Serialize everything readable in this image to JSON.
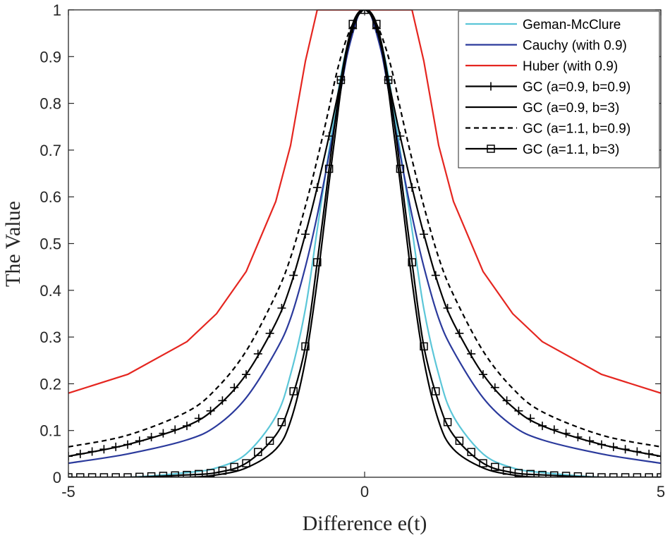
{
  "chart_data": {
    "type": "line",
    "title": "",
    "xlabel": "Difference e(t)",
    "ylabel": "The Value",
    "xlim": [
      -5,
      5
    ],
    "ylim": [
      0,
      1
    ],
    "xticks": [
      -5,
      0,
      5
    ],
    "yticks": [
      0,
      0.1,
      0.2,
      0.3,
      0.4,
      0.5,
      0.6,
      0.7,
      0.8,
      0.9,
      1
    ],
    "ytick_labels": [
      "0",
      "0.1",
      "0.2",
      "0.3",
      "0.4",
      "0.5",
      "0.6",
      "0.7",
      "0.8",
      "0.9",
      "1"
    ],
    "xtick_labels": [
      "-5",
      "0",
      "5"
    ],
    "legend_position": "top-right",
    "x": [
      -5,
      -4,
      -3,
      -2.5,
      -2,
      -1.5,
      -1.25,
      -1,
      -0.8,
      -0.6,
      -0.5,
      -0.4,
      -0.3,
      -0.2,
      -0.1,
      0,
      0.1,
      0.2,
      0.3,
      0.4,
      0.5,
      0.6,
      0.8,
      1,
      1.25,
      1.5,
      2,
      2.5,
      3,
      4,
      5
    ],
    "series": [
      {
        "name": "Geman-McClure",
        "color": "#5bc6d8",
        "style": "solid",
        "marker": "none",
        "values": [
          0.0,
          0.0,
          0.01,
          0.02,
          0.05,
          0.13,
          0.22,
          0.36,
          0.53,
          0.7,
          0.78,
          0.86,
          0.92,
          0.96,
          0.99,
          1.0,
          0.99,
          0.96,
          0.92,
          0.86,
          0.78,
          0.7,
          0.53,
          0.36,
          0.22,
          0.13,
          0.05,
          0.02,
          0.01,
          0.0,
          0.0
        ]
      },
      {
        "name": "Cauchy (with 0.9)",
        "color": "#2b3a9c",
        "style": "solid",
        "marker": "none",
        "values": [
          0.03,
          0.05,
          0.08,
          0.11,
          0.17,
          0.27,
          0.34,
          0.45,
          0.56,
          0.69,
          0.76,
          0.83,
          0.9,
          0.95,
          0.99,
          1.0,
          0.99,
          0.95,
          0.9,
          0.83,
          0.76,
          0.69,
          0.56,
          0.45,
          0.34,
          0.27,
          0.17,
          0.11,
          0.08,
          0.05,
          0.03
        ]
      },
      {
        "name": "Huber (with 0.9)",
        "color": "#e52620",
        "style": "solid",
        "marker": "none",
        "values": [
          0.18,
          0.22,
          0.29,
          0.35,
          0.44,
          0.59,
          0.71,
          0.89,
          1.0,
          1.0,
          1.0,
          1.0,
          1.0,
          1.0,
          1.0,
          1.0,
          1.0,
          1.0,
          1.0,
          1.0,
          1.0,
          1.0,
          1.0,
          0.89,
          0.71,
          0.59,
          0.44,
          0.35,
          0.29,
          0.22,
          0.18
        ]
      },
      {
        "name": "GC (a=0.9, b=0.9)",
        "color": "#000000",
        "style": "solid",
        "marker": "plus",
        "values": [
          0.045,
          0.07,
          0.11,
          0.15,
          0.22,
          0.33,
          0.41,
          0.52,
          0.62,
          0.73,
          0.79,
          0.85,
          0.91,
          0.96,
          0.99,
          1.0,
          0.99,
          0.96,
          0.91,
          0.85,
          0.79,
          0.73,
          0.62,
          0.52,
          0.41,
          0.33,
          0.22,
          0.15,
          0.11,
          0.07,
          0.045
        ]
      },
      {
        "name": "GC (a=0.9, b=3)",
        "color": "#000000",
        "style": "solid",
        "marker": "none",
        "values": [
          0.0,
          0.0,
          0.0,
          0.005,
          0.02,
          0.06,
          0.12,
          0.25,
          0.42,
          0.63,
          0.73,
          0.83,
          0.91,
          0.97,
          0.995,
          1.0,
          0.995,
          0.97,
          0.91,
          0.83,
          0.73,
          0.63,
          0.42,
          0.25,
          0.12,
          0.06,
          0.02,
          0.005,
          0.0,
          0.0,
          0.0
        ]
      },
      {
        "name": "GC (a=1.1, b=0.9)",
        "color": "#000000",
        "style": "dashed",
        "marker": "none",
        "values": [
          0.065,
          0.09,
          0.14,
          0.19,
          0.27,
          0.39,
          0.47,
          0.58,
          0.68,
          0.79,
          0.85,
          0.9,
          0.94,
          0.97,
          0.99,
          1.0,
          0.99,
          0.97,
          0.94,
          0.9,
          0.85,
          0.79,
          0.68,
          0.58,
          0.47,
          0.39,
          0.27,
          0.19,
          0.14,
          0.09,
          0.065
        ]
      },
      {
        "name": "GC (a=1.1, b=3)",
        "color": "#000000",
        "style": "solid",
        "marker": "square",
        "values": [
          0.0,
          0.0,
          0.005,
          0.01,
          0.03,
          0.09,
          0.16,
          0.28,
          0.46,
          0.66,
          0.76,
          0.85,
          0.92,
          0.97,
          0.995,
          1.0,
          0.995,
          0.97,
          0.92,
          0.85,
          0.76,
          0.66,
          0.46,
          0.28,
          0.16,
          0.09,
          0.03,
          0.01,
          0.005,
          0.0,
          0.0
        ]
      }
    ]
  }
}
